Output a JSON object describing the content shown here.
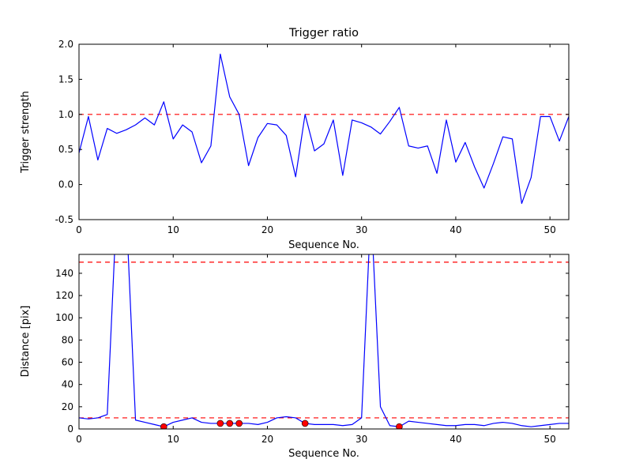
{
  "figure": {
    "background": "#ffffff",
    "axes_color": "#000000"
  },
  "chart_data": [
    {
      "type": "line",
      "title": "Trigger ratio",
      "xlabel": "Sequence No.",
      "ylabel": "Trigger strength",
      "xlim": [
        0,
        52
      ],
      "ylim": [
        -0.5,
        2.0
      ],
      "xticks": [
        0,
        10,
        20,
        30,
        40,
        50
      ],
      "xtick_labels": [
        "0",
        "10",
        "20",
        "30",
        "40",
        "50"
      ],
      "yticks": [
        -0.5,
        0.0,
        0.5,
        1.0,
        1.5,
        2.0
      ],
      "ytick_labels": [
        "-0.5",
        "0.0",
        "0.5",
        "1.0",
        "1.5",
        "2.0"
      ],
      "grid": false,
      "legend": null,
      "thresholds": [
        1.0
      ],
      "line_color": "#0000ff",
      "threshold_color": "#ff0000",
      "x": [
        0,
        1,
        2,
        3,
        4,
        5,
        6,
        7,
        8,
        9,
        10,
        11,
        12,
        13,
        14,
        15,
        16,
        17,
        18,
        19,
        20,
        21,
        22,
        23,
        24,
        25,
        26,
        27,
        28,
        29,
        30,
        31,
        32,
        33,
        34,
        35,
        36,
        37,
        38,
        39,
        40,
        41,
        42,
        43,
        44,
        45,
        46,
        47,
        48,
        49,
        50,
        51,
        52
      ],
      "y": [
        0.45,
        0.97,
        0.35,
        0.8,
        0.73,
        0.78,
        0.85,
        0.95,
        0.85,
        1.18,
        0.65,
        0.85,
        0.75,
        0.31,
        0.55,
        1.86,
        1.25,
        1.0,
        0.27,
        0.67,
        0.87,
        0.85,
        0.7,
        0.11,
        1.0,
        0.48,
        0.58,
        0.92,
        0.13,
        0.92,
        0.88,
        0.82,
        0.72,
        0.9,
        1.1,
        0.55,
        0.52,
        0.55,
        0.16,
        0.92,
        0.32,
        0.6,
        0.25,
        -0.05,
        0.3,
        0.68,
        0.65,
        -0.27,
        0.1,
        0.97,
        0.97,
        0.62,
        0.97
      ]
    },
    {
      "type": "line",
      "title": "",
      "xlabel": "Sequence No.",
      "ylabel": "Distance [pix]",
      "xlim": [
        0,
        52
      ],
      "ylim": [
        0,
        157
      ],
      "xticks": [
        0,
        10,
        20,
        30,
        40,
        50
      ],
      "xtick_labels": [
        "0",
        "10",
        "20",
        "30",
        "40",
        "50"
      ],
      "yticks": [
        0,
        20,
        40,
        60,
        80,
        100,
        120,
        140
      ],
      "ytick_labels": [
        "0",
        "20",
        "40",
        "60",
        "80",
        "100",
        "120",
        "140"
      ],
      "grid": false,
      "legend": null,
      "thresholds": [
        150,
        10
      ],
      "line_color": "#0000ff",
      "threshold_color": "#ff0000",
      "marker_color": "#ff0000",
      "marker_edge_color": "#000000",
      "x": [
        0,
        1,
        2,
        3,
        4,
        5,
        6,
        7,
        8,
        9,
        10,
        11,
        12,
        13,
        14,
        15,
        16,
        17,
        18,
        19,
        20,
        21,
        22,
        23,
        24,
        25,
        26,
        27,
        28,
        29,
        30,
        31,
        32,
        33,
        34,
        35,
        36,
        37,
        38,
        39,
        40,
        41,
        42,
        43,
        44,
        45,
        46,
        47,
        48,
        49,
        50,
        51,
        52
      ],
      "y": [
        10,
        9,
        10,
        13,
        200,
        200,
        8,
        6,
        4,
        2,
        6,
        8,
        10,
        6,
        5,
        5,
        5,
        5,
        5,
        4,
        6,
        10,
        11,
        10,
        5,
        4,
        4,
        4,
        3,
        4,
        10,
        200,
        20,
        3,
        2,
        7,
        6,
        5,
        4,
        3,
        3,
        4,
        4,
        3,
        5,
        6,
        5,
        3,
        2,
        3,
        4,
        5,
        5
      ],
      "markers": [
        [
          9,
          2
        ],
        [
          15,
          5
        ],
        [
          16,
          5
        ],
        [
          17,
          5
        ],
        [
          24,
          5
        ],
        [
          34,
          2
        ]
      ]
    }
  ]
}
